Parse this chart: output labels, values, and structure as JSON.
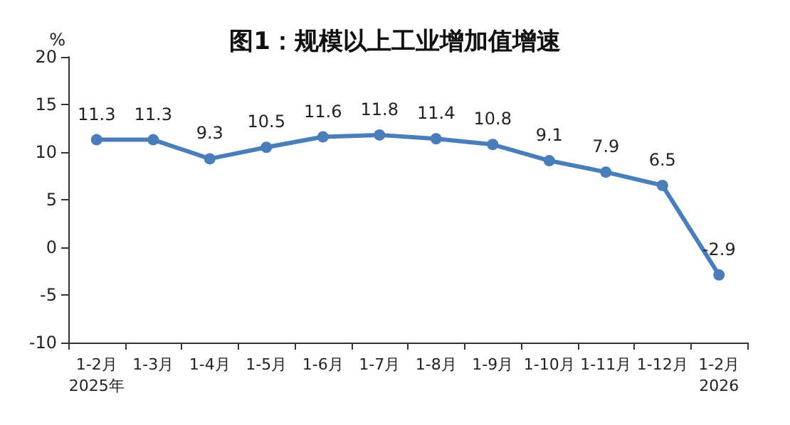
{
  "chart_data": {
    "type": "line",
    "title": "图1：规模以上工业增加值增速",
    "ylabel": "%",
    "categories": [
      "1-2月\n2025年",
      "1-3月",
      "1-4月",
      "1-5月",
      "1-6月",
      "1-7月",
      "1-8月",
      "1-9月",
      "1-10月",
      "1-11月",
      "1-12月",
      "1-2月\n2026"
    ],
    "series": [
      {
        "color": "#4a7ebb",
        "values": [
          11.3,
          11.3,
          9.3,
          10.5,
          11.6,
          11.8,
          11.4,
          10.8,
          9.1,
          7.9,
          6.5,
          -2.9
        ]
      }
    ],
    "ylim": [
      -10,
      20
    ],
    "yticks": [
      -10,
      -5,
      0,
      5,
      10,
      15,
      20
    ],
    "grid": false,
    "marker": "circle",
    "line_style": "solid",
    "data_labels": true
  }
}
